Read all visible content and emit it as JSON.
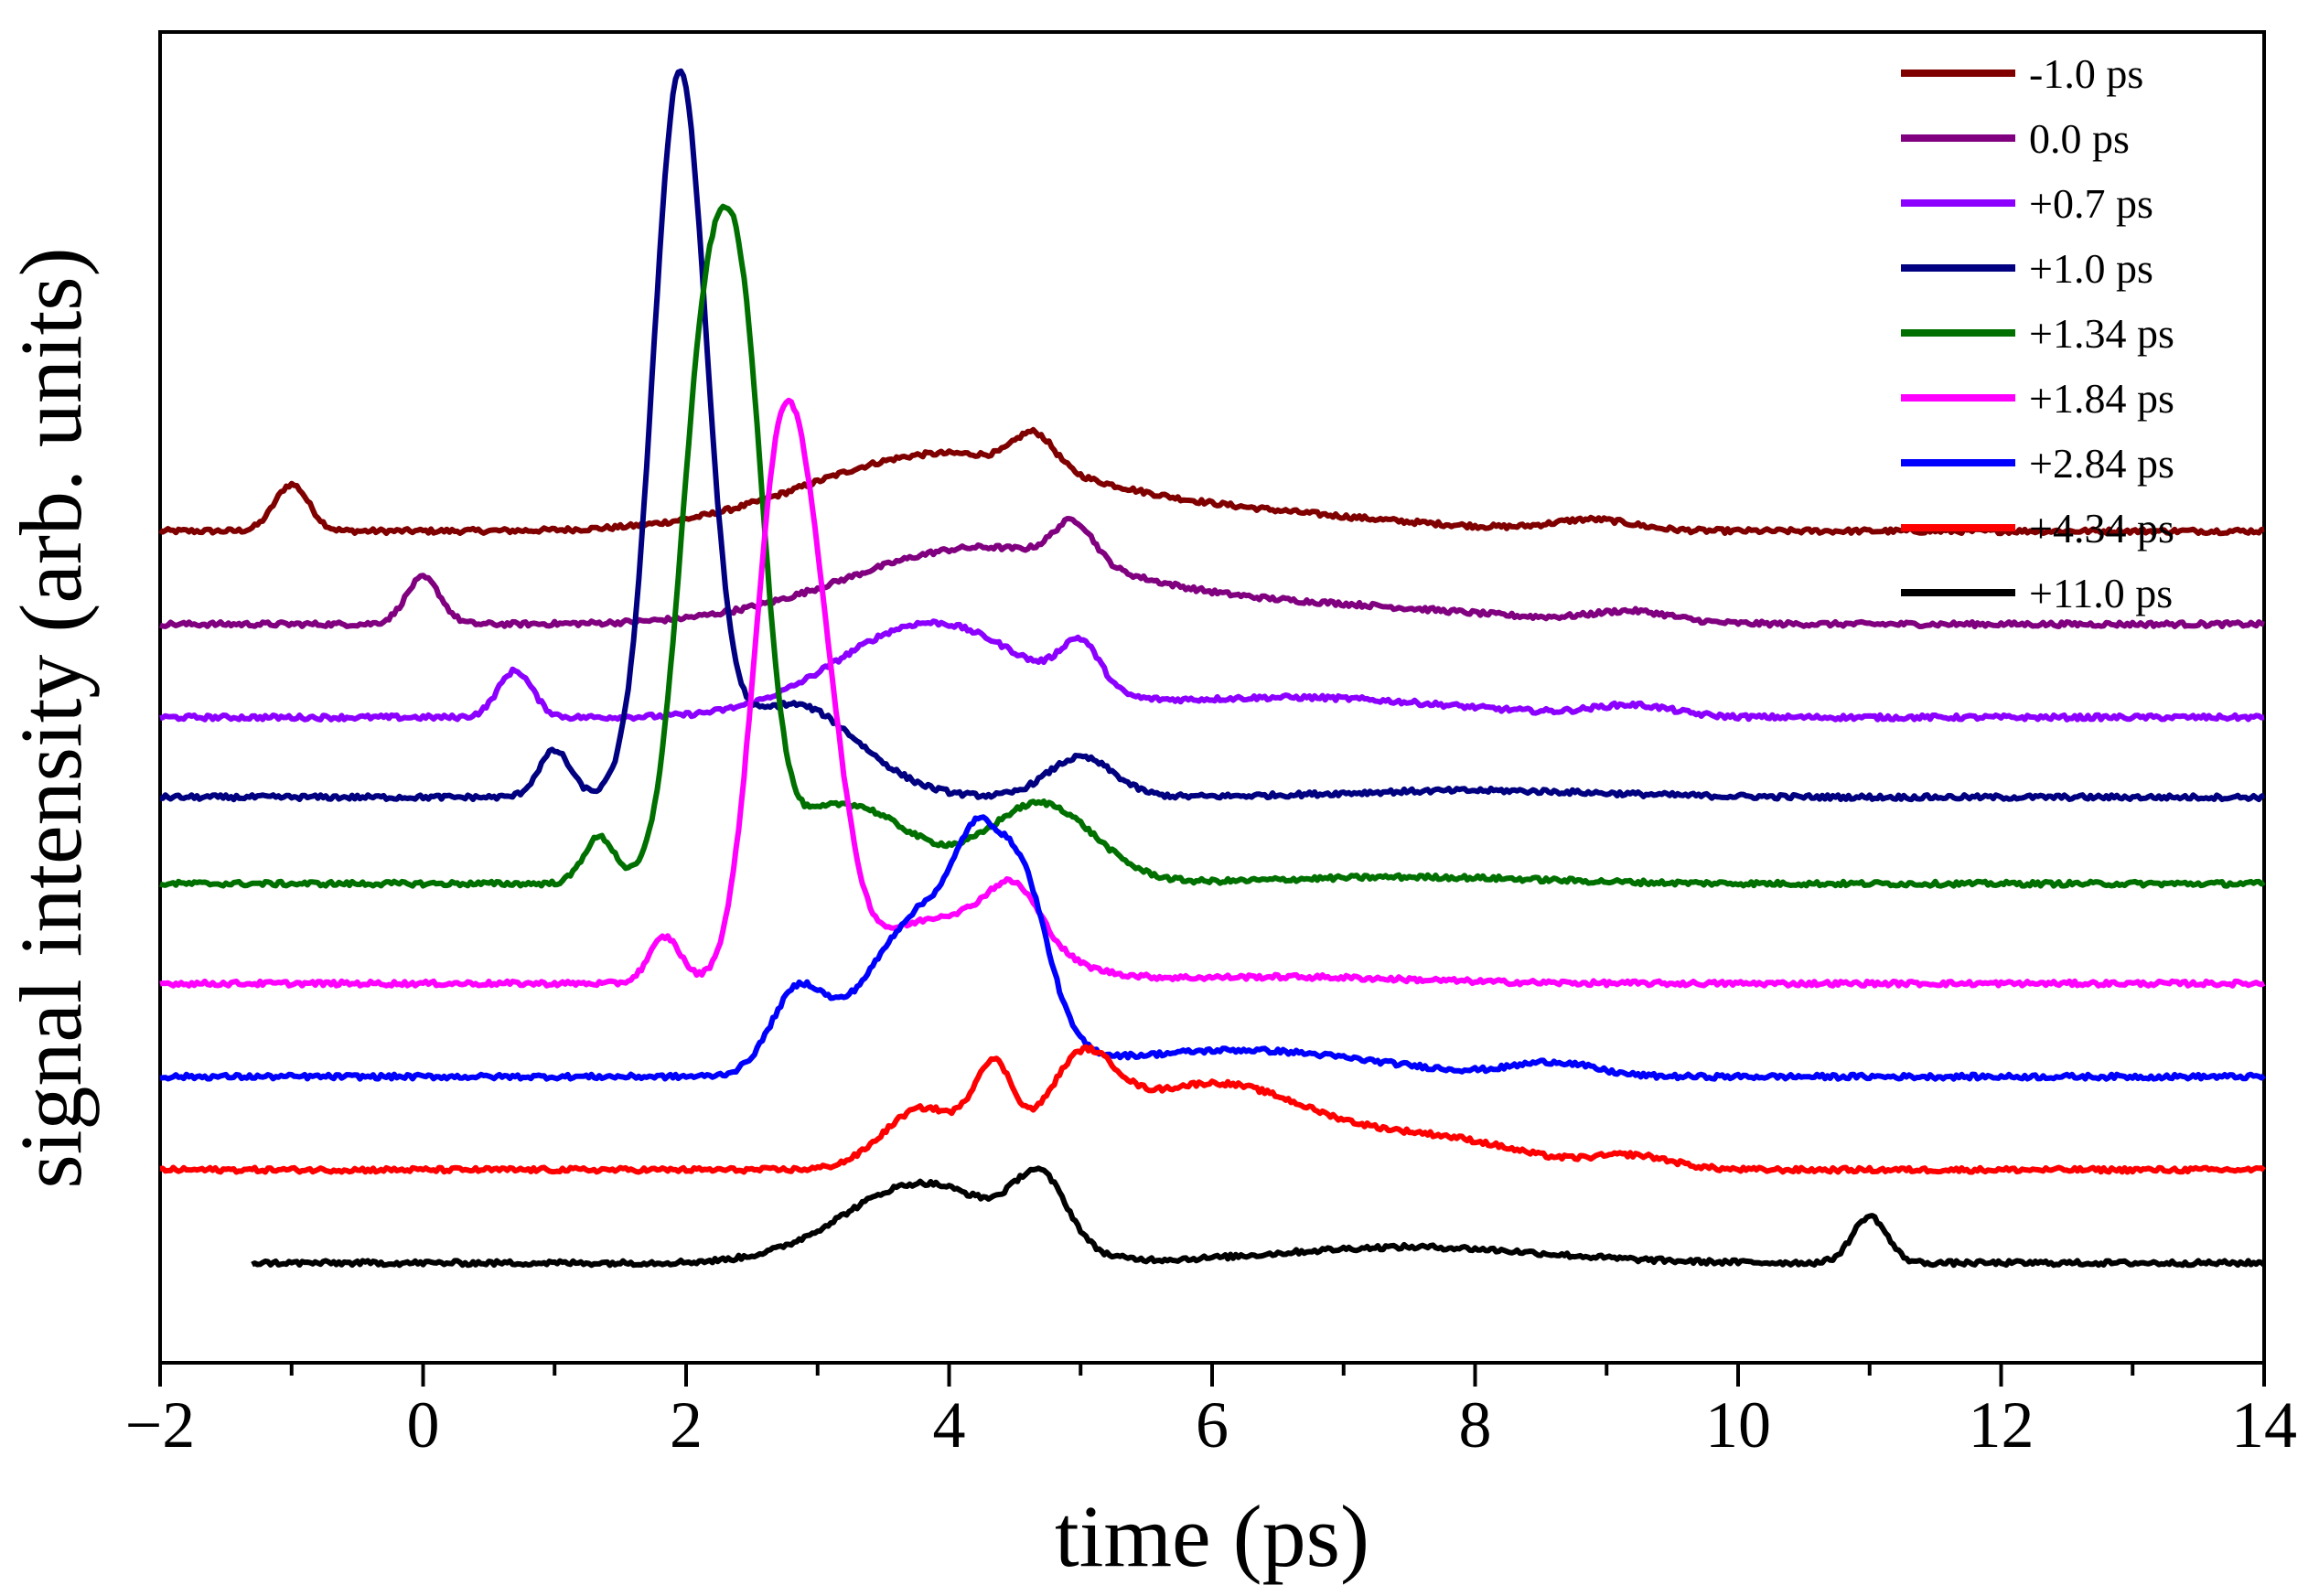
{
  "chart_data": {
    "type": "line",
    "title": "",
    "xlabel": "time (ps)",
    "ylabel": "signal intensity (arb. units)",
    "xlim": [
      -2,
      14
    ],
    "ylim": [
      0,
      10
    ],
    "x_ticks": [
      -2,
      0,
      2,
      4,
      6,
      8,
      10,
      12,
      14
    ],
    "x_tick_labels": [
      "−2",
      "0",
      "2",
      "4",
      "6",
      "8",
      "10",
      "12",
      "14"
    ],
    "y_tick_labels_shown": false,
    "grid": false,
    "legend_position": "top-right",
    "series": [
      {
        "name": "-1.0 ps",
        "color": "#800000",
        "baseline": 6.25,
        "features": [
          [
            -1.0,
            0.35,
            0.13
          ],
          [
            3.9,
            0.55,
            1.0
          ],
          [
            4.65,
            0.25,
            0.15
          ],
          [
            6.0,
            0.15,
            1.2
          ],
          [
            8.9,
            0.08,
            0.3
          ]
        ]
      },
      {
        "name": "0.0 ps",
        "color": "#800080",
        "baseline": 5.55,
        "features": [
          [
            0.0,
            0.35,
            0.13
          ],
          [
            4.2,
            0.55,
            1.0
          ],
          [
            4.95,
            0.3,
            0.15
          ],
          [
            6.6,
            0.15,
            1.3
          ],
          [
            9.2,
            0.08,
            0.3
          ]
        ]
      },
      {
        "name": "+0.7 ps",
        "color": "#8B00FF",
        "baseline": 4.85,
        "features": [
          [
            0.7,
            0.35,
            0.13
          ],
          [
            3.85,
            0.7,
            0.7
          ],
          [
            5.0,
            0.35,
            0.15
          ],
          [
            6.6,
            0.15,
            1.2
          ],
          [
            9.2,
            0.08,
            0.3
          ]
        ]
      },
      {
        "name": "+1.0 ps",
        "color": "#000080",
        "baseline": 4.25,
        "features": [
          [
            1.0,
            0.35,
            0.12
          ],
          [
            1.95,
            5.3,
            0.2
          ],
          [
            2.8,
            0.7,
            0.5
          ],
          [
            5.0,
            0.3,
            0.25
          ],
          [
            8.0,
            0.05,
            1.0
          ]
        ]
      },
      {
        "name": "+1.34 ps",
        "color": "#007000",
        "baseline": 3.6,
        "features": [
          [
            1.34,
            0.35,
            0.12
          ],
          [
            2.15,
            3.9,
            0.2
          ],
          [
            2.45,
            3.0,
            0.17
          ],
          [
            3.2,
            0.6,
            0.5
          ],
          [
            4.7,
            0.6,
            0.4
          ],
          [
            7.5,
            0.05,
            1.0
          ]
        ]
      },
      {
        "name": "+1.84 ps",
        "color": "#FF00FF",
        "baseline": 2.85,
        "features": [
          [
            1.84,
            0.35,
            0.12
          ],
          [
            2.7,
            3.5,
            0.2
          ],
          [
            3.0,
            2.0,
            0.2
          ],
          [
            4.0,
            0.5,
            0.6
          ],
          [
            4.5,
            0.4,
            0.2
          ],
          [
            6.5,
            0.05,
            1.0
          ]
        ]
      },
      {
        "name": "+2.84 ps",
        "color": "#0000FF",
        "baseline": 2.15,
        "features": [
          [
            2.84,
            0.55,
            0.2
          ],
          [
            3.9,
            1.3,
            0.5
          ],
          [
            4.2,
            0.6,
            0.15
          ],
          [
            4.55,
            1.0,
            0.2
          ],
          [
            6.2,
            0.2,
            1.0
          ],
          [
            8.6,
            0.1,
            0.3
          ]
        ]
      },
      {
        "name": "+4.34 ps",
        "color": "#FF0000",
        "baseline": 1.45,
        "features": [
          [
            3.8,
            0.45,
            0.3
          ],
          [
            4.34,
            0.65,
            0.15
          ],
          [
            5.0,
            0.6,
            0.25
          ],
          [
            6.0,
            0.65,
            0.8
          ],
          [
            7.8,
            0.2,
            0.6
          ],
          [
            9.2,
            0.1,
            0.3
          ]
        ]
      },
      {
        "name": "+11.0 ps",
        "color": "#000000",
        "baseline": 0.75,
        "x_start": -1.3,
        "features": [
          [
            3.8,
            0.6,
            0.6
          ],
          [
            4.7,
            0.5,
            0.2
          ],
          [
            7.5,
            0.12,
            1.0
          ],
          [
            11.0,
            0.35,
            0.13
          ]
        ]
      }
    ]
  }
}
